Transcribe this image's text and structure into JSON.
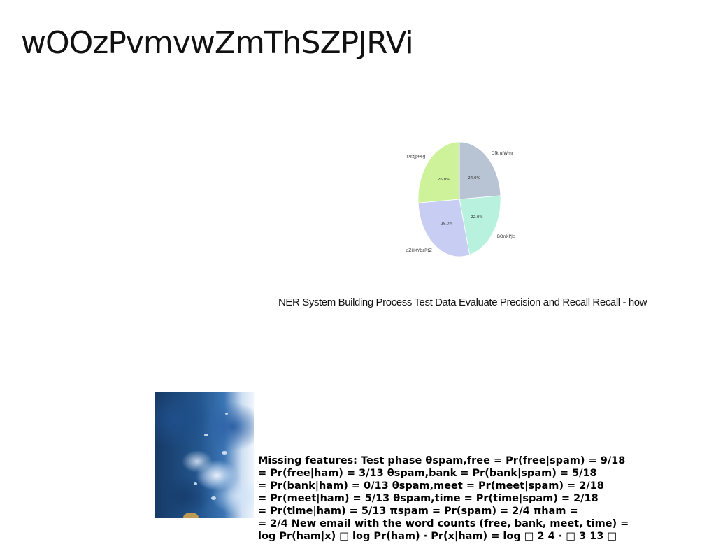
{
  "page": {
    "title": "wOOzPvmvwZmThSZPJRVi"
  },
  "chart_data": {
    "type": "pie",
    "title": "",
    "slices": [
      {
        "label": "DfkluIWmr",
        "value": 24.0,
        "pct_label": "24.0%",
        "color": "#b8c4d4"
      },
      {
        "label": "BOnXPJc",
        "value": 22.0,
        "pct_label": "22.0%",
        "color": "#b8f2de"
      },
      {
        "label": "dZHKYbsRtZ",
        "value": 28.0,
        "pct_label": "28.0%",
        "color": "#c8cdf4"
      },
      {
        "label": "DszjpFeg",
        "value": 26.0,
        "pct_label": "26.0%",
        "color": "#cdf29a"
      }
    ],
    "start_angle_deg": 90,
    "direction": "clockwise"
  },
  "caption": {
    "text": "NER System Building Process Test Data Evaluate Precision and Recall Recall - how"
  },
  "photo": {
    "description_icon": "photo-image"
  },
  "formula": {
    "lines": [
      "Missing features: Test phase θspam,free = Pr(free|spam) = 9/18",
      "= Pr(free|ham) = 3/13 θspam,bank = Pr(bank|spam) = 5/18",
      "= Pr(bank|ham) = 0/13 θspam,meet = Pr(meet|spam) = 2/18",
      "= Pr(meet|ham) = 5/13 θspam,time = Pr(time|spam) = 2/18",
      "= Pr(time|ham) = 5/13 πspam = Pr(spam) = 2/4 πham =",
      "= 2/4 New email with the word counts (free, bank, meet, time) =",
      "log Pr(ham|x) □ log Pr(ham) · Pr(x|ham) = log □ 2 4 · □ 3 13 □"
    ]
  }
}
